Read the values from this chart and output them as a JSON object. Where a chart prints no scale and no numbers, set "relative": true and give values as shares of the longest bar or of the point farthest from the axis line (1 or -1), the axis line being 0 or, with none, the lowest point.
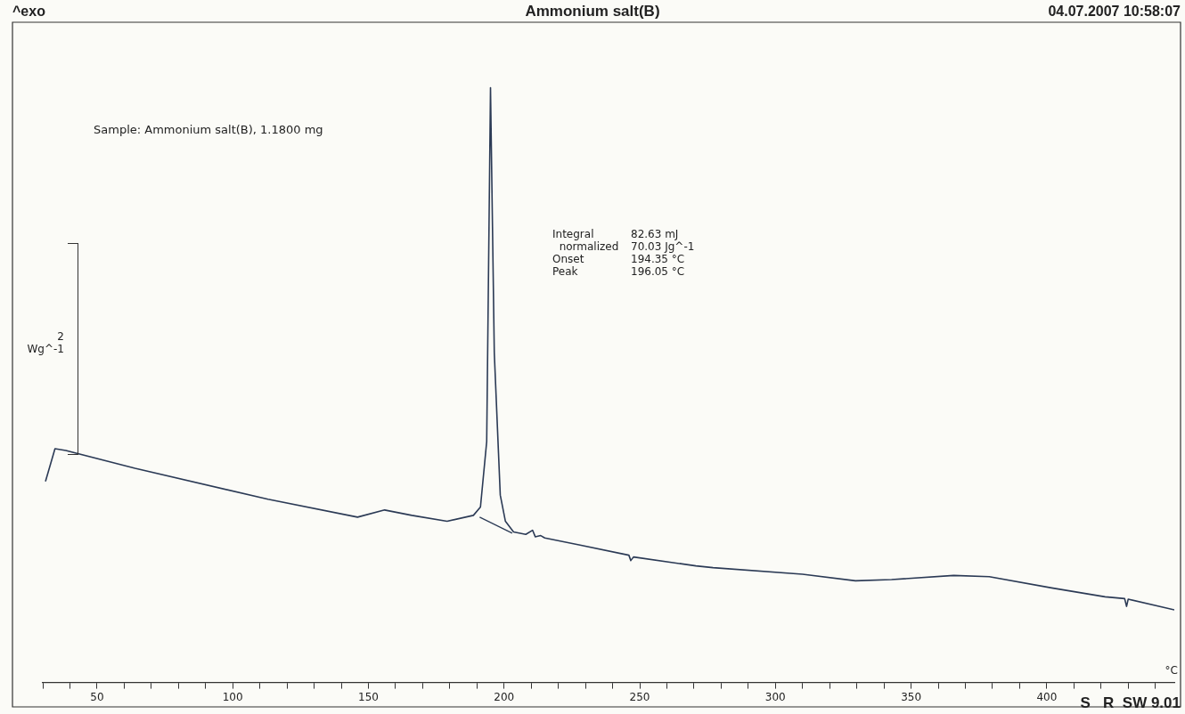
{
  "chart_data": {
    "type": "line",
    "title": "Ammonium salt(B)",
    "xlabel": "°C",
    "ylabel": "Wg^-1",
    "relative": true,
    "marker": "none",
    "line_style": "solid",
    "legend": false,
    "annotations": [
      "^exo",
      "04.07.2007 10:58:07",
      "Sample: Ammonium salt(B), 1.1800 mg",
      "Integral\t82.63 mJ",
      "  normalized\t70.03 Jg^-1",
      "Onset\t194.35 °C",
      "Peak\t196.05 °C",
      "S   R  SW 9.01",
      "2"
    ],
    "xlim": [
      30,
      447
    ],
    "xticks": [
      {
        "value": 30,
        "label": null
      },
      {
        "value": 40,
        "label": null
      },
      50,
      {
        "value": 60,
        "label": null
      },
      {
        "value": 70,
        "label": null
      },
      {
        "value": 80,
        "label": null
      },
      {
        "value": 90,
        "label": null
      },
      100,
      {
        "value": 110,
        "label": null
      },
      {
        "value": 120,
        "label": null
      },
      {
        "value": 130,
        "label": null
      },
      {
        "value": 140,
        "label": null
      },
      150,
      {
        "value": 160,
        "label": null
      },
      {
        "value": 170,
        "label": null
      },
      {
        "value": 180,
        "label": null
      },
      {
        "value": 190,
        "label": null
      },
      200,
      {
        "value": 210,
        "label": null
      },
      {
        "value": 220,
        "label": null
      },
      {
        "value": 230,
        "label": null
      },
      {
        "value": 240,
        "label": null
      },
      250,
      {
        "value": 260,
        "label": null
      },
      {
        "value": 270,
        "label": null
      },
      {
        "value": 280,
        "label": null
      },
      {
        "value": 290,
        "label": null
      },
      300,
      {
        "value": 310,
        "label": null
      },
      {
        "value": 320,
        "label": null
      },
      {
        "value": 330,
        "label": null
      },
      {
        "value": 340,
        "label": null
      },
      350,
      {
        "value": 360,
        "label": null
      },
      {
        "value": 370,
        "label": null
      },
      {
        "value": 380,
        "label": null
      },
      {
        "value": 390,
        "label": null
      },
      400,
      {
        "value": 410,
        "label": null
      },
      {
        "value": 420,
        "label": null
      },
      {
        "value": 430,
        "label": null
      },
      {
        "value": 440,
        "label": null
      }
    ],
    "series": [
      {
        "color": "#2b3a55",
        "x": [
          31,
          34.5,
          38.5,
          64,
          113,
          146,
          156,
          166,
          179,
          188.7,
          191.3,
          193.6,
          195,
          196.4,
          198.6,
          200.5,
          203.5,
          208,
          210.5,
          211.5,
          213.5,
          215,
          228,
          246,
          246.7,
          247.7,
          270.7,
          277,
          310,
          329.5,
          342.8,
          365.7,
          378.8,
          401.8,
          421.5,
          428.7,
          429.4,
          430,
          447
        ],
        "values": [
          0.338,
          0.393,
          0.39,
          0.36,
          0.308,
          0.278,
          0.29,
          0.281,
          0.271,
          0.281,
          0.295,
          0.405,
          1,
          0.554,
          0.315,
          0.271,
          0.253,
          0.249,
          0.256,
          0.245,
          0.247,
          0.243,
          0.231,
          0.214,
          0.205,
          0.211,
          0.196,
          0.193,
          0.182,
          0.171,
          0.173,
          0.18,
          0.178,
          0.159,
          0.144,
          0.141,
          0.128,
          0.14,
          0.122
        ]
      },
      {
        "color": "#2b3a55",
        "x": [
          191,
          203
        ],
        "values": [
          0.278,
          0.251
        ]
      }
    ]
  }
}
